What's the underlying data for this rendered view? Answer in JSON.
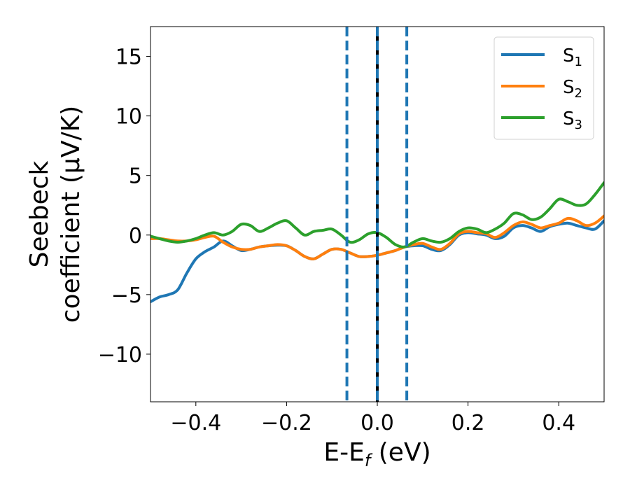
{
  "chart_data": {
    "type": "line",
    "xlabel": "E-E",
    "xlabel_sub": "f",
    "xlabel_unit": " (eV)",
    "ylabel_line1": "Seebeck",
    "ylabel_line2": "coefficient  (μV/K)",
    "xlim": [
      -0.5,
      0.5
    ],
    "ylim": [
      -14,
      17.5
    ],
    "x_ticks": [
      -0.4,
      -0.2,
      0.0,
      0.2,
      0.4
    ],
    "x_tick_labels": [
      "−0.4",
      "−0.2",
      "0.0",
      "0.2",
      "0.4"
    ],
    "y_ticks": [
      -10,
      -5,
      0,
      5,
      10,
      15
    ],
    "y_tick_labels": [
      "−10",
      "−5",
      "0",
      "5",
      "10",
      "15"
    ],
    "grid": false,
    "legend_position": "top-right",
    "vlines": [
      {
        "x": 0.0,
        "style": "solid",
        "color": "#000000"
      },
      {
        "x": 0.0,
        "style": "dashed",
        "color": "#1f77b4"
      },
      {
        "x": -0.067,
        "style": "dashed",
        "color": "#1f77b4"
      },
      {
        "x": 0.065,
        "style": "dashed",
        "color": "#1f77b4"
      }
    ],
    "series": [
      {
        "name": "S",
        "sub": "1",
        "color": "#1f77b4",
        "points": [
          [
            -0.5,
            -5.6
          ],
          [
            -0.48,
            -5.2
          ],
          [
            -0.46,
            -5.0
          ],
          [
            -0.44,
            -4.6
          ],
          [
            -0.42,
            -3.2
          ],
          [
            -0.4,
            -2.0
          ],
          [
            -0.38,
            -1.4
          ],
          [
            -0.36,
            -1.0
          ],
          [
            -0.34,
            -0.5
          ],
          [
            -0.32,
            -0.9
          ],
          [
            -0.3,
            -1.3
          ],
          [
            -0.28,
            -1.2
          ],
          [
            -0.26,
            -1.0
          ],
          [
            -0.24,
            -0.9
          ],
          [
            -0.22,
            -0.85
          ],
          [
            -0.2,
            -0.9
          ],
          [
            -0.18,
            -1.3
          ],
          [
            -0.16,
            -1.8
          ],
          [
            -0.14,
            -2.0
          ],
          [
            -0.12,
            -1.6
          ],
          [
            -0.1,
            -1.2
          ],
          [
            -0.08,
            -1.2
          ],
          [
            -0.06,
            -1.5
          ],
          [
            -0.04,
            -1.8
          ],
          [
            -0.02,
            -1.8
          ],
          [
            0.0,
            -1.7
          ],
          [
            0.02,
            -1.5
          ],
          [
            0.04,
            -1.3
          ],
          [
            0.06,
            -1.0
          ],
          [
            0.08,
            -0.9
          ],
          [
            0.1,
            -0.9
          ],
          [
            0.12,
            -1.2
          ],
          [
            0.14,
            -1.3
          ],
          [
            0.16,
            -0.8
          ],
          [
            0.18,
            0.0
          ],
          [
            0.2,
            0.2
          ],
          [
            0.22,
            0.1
          ],
          [
            0.24,
            0.0
          ],
          [
            0.26,
            -0.3
          ],
          [
            0.28,
            -0.1
          ],
          [
            0.3,
            0.6
          ],
          [
            0.32,
            0.8
          ],
          [
            0.34,
            0.6
          ],
          [
            0.36,
            0.3
          ],
          [
            0.38,
            0.7
          ],
          [
            0.4,
            0.9
          ],
          [
            0.42,
            1.0
          ],
          [
            0.44,
            0.8
          ],
          [
            0.46,
            0.6
          ],
          [
            0.48,
            0.5
          ],
          [
            0.5,
            1.2
          ]
        ]
      },
      {
        "name": "S",
        "sub": "2",
        "color": "#ff7f0e",
        "points": [
          [
            -0.5,
            -0.3
          ],
          [
            -0.48,
            -0.3
          ],
          [
            -0.46,
            -0.4
          ],
          [
            -0.44,
            -0.5
          ],
          [
            -0.42,
            -0.5
          ],
          [
            -0.4,
            -0.4
          ],
          [
            -0.38,
            -0.2
          ],
          [
            -0.36,
            -0.1
          ],
          [
            -0.34,
            -0.6
          ],
          [
            -0.32,
            -1.0
          ],
          [
            -0.3,
            -1.2
          ],
          [
            -0.28,
            -1.2
          ],
          [
            -0.26,
            -1.0
          ],
          [
            -0.24,
            -0.9
          ],
          [
            -0.22,
            -0.8
          ],
          [
            -0.2,
            -0.9
          ],
          [
            -0.18,
            -1.3
          ],
          [
            -0.16,
            -1.8
          ],
          [
            -0.14,
            -2.0
          ],
          [
            -0.12,
            -1.6
          ],
          [
            -0.1,
            -1.2
          ],
          [
            -0.08,
            -1.2
          ],
          [
            -0.06,
            -1.5
          ],
          [
            -0.04,
            -1.8
          ],
          [
            -0.02,
            -1.8
          ],
          [
            0.0,
            -1.7
          ],
          [
            0.02,
            -1.5
          ],
          [
            0.04,
            -1.3
          ],
          [
            0.06,
            -1.0
          ],
          [
            0.08,
            -0.8
          ],
          [
            0.1,
            -0.7
          ],
          [
            0.12,
            -1.0
          ],
          [
            0.14,
            -1.2
          ],
          [
            0.16,
            -0.7
          ],
          [
            0.18,
            0.1
          ],
          [
            0.2,
            0.3
          ],
          [
            0.22,
            0.2
          ],
          [
            0.24,
            0.1
          ],
          [
            0.26,
            -0.2
          ],
          [
            0.28,
            0.2
          ],
          [
            0.3,
            0.8
          ],
          [
            0.32,
            1.1
          ],
          [
            0.34,
            0.9
          ],
          [
            0.36,
            0.6
          ],
          [
            0.38,
            0.8
          ],
          [
            0.4,
            1.0
          ],
          [
            0.42,
            1.4
          ],
          [
            0.44,
            1.2
          ],
          [
            0.46,
            0.8
          ],
          [
            0.48,
            1.0
          ],
          [
            0.5,
            1.6
          ]
        ]
      },
      {
        "name": "S",
        "sub": "3",
        "color": "#2ca02c",
        "points": [
          [
            -0.5,
            -0.1
          ],
          [
            -0.48,
            -0.3
          ],
          [
            -0.46,
            -0.5
          ],
          [
            -0.44,
            -0.6
          ],
          [
            -0.42,
            -0.5
          ],
          [
            -0.4,
            -0.3
          ],
          [
            -0.38,
            0.0
          ],
          [
            -0.36,
            0.2
          ],
          [
            -0.34,
            0.0
          ],
          [
            -0.32,
            0.3
          ],
          [
            -0.3,
            0.9
          ],
          [
            -0.28,
            0.8
          ],
          [
            -0.26,
            0.3
          ],
          [
            -0.24,
            0.6
          ],
          [
            -0.22,
            1.0
          ],
          [
            -0.2,
            1.2
          ],
          [
            -0.18,
            0.6
          ],
          [
            -0.16,
            0.0
          ],
          [
            -0.14,
            0.3
          ],
          [
            -0.12,
            0.4
          ],
          [
            -0.1,
            0.5
          ],
          [
            -0.08,
            0.0
          ],
          [
            -0.06,
            -0.6
          ],
          [
            -0.04,
            -0.4
          ],
          [
            -0.02,
            0.1
          ],
          [
            0.0,
            0.2
          ],
          [
            0.02,
            -0.2
          ],
          [
            0.04,
            -0.8
          ],
          [
            0.06,
            -1.0
          ],
          [
            0.08,
            -0.6
          ],
          [
            0.1,
            -0.3
          ],
          [
            0.12,
            -0.5
          ],
          [
            0.14,
            -0.6
          ],
          [
            0.16,
            -0.3
          ],
          [
            0.18,
            0.3
          ],
          [
            0.2,
            0.6
          ],
          [
            0.22,
            0.5
          ],
          [
            0.24,
            0.2
          ],
          [
            0.26,
            0.5
          ],
          [
            0.28,
            1.0
          ],
          [
            0.3,
            1.8
          ],
          [
            0.32,
            1.7
          ],
          [
            0.34,
            1.3
          ],
          [
            0.36,
            1.5
          ],
          [
            0.38,
            2.2
          ],
          [
            0.4,
            3.0
          ],
          [
            0.42,
            2.8
          ],
          [
            0.44,
            2.5
          ],
          [
            0.46,
            2.6
          ],
          [
            0.48,
            3.4
          ],
          [
            0.5,
            4.4
          ]
        ]
      }
    ]
  }
}
